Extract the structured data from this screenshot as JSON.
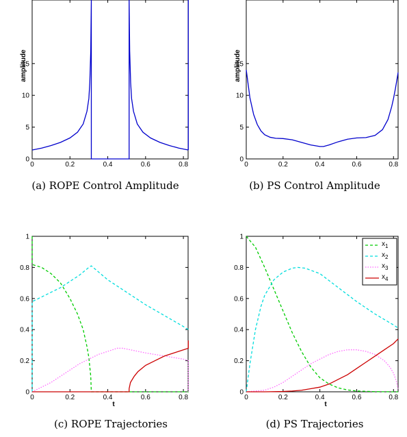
{
  "chart_data": [
    {
      "id": "a",
      "type": "line",
      "caption": "(a) ROPE Control Amplitude",
      "ylabel": "amplitude",
      "xlabel": "",
      "xlim": [
        0,
        0.825
      ],
      "ylim": [
        0,
        25
      ],
      "xticks": [
        "0",
        "0.2",
        "0.4",
        "0.6",
        "0.8"
      ],
      "yticks": [
        "0",
        "5",
        "10",
        "15"
      ],
      "series": [
        {
          "color": "#0000cc",
          "x": [
            0,
            0.05,
            0.1,
            0.15,
            0.2,
            0.24,
            0.27,
            0.29,
            0.3,
            0.305,
            0.31,
            0.313,
            0.313,
            0.513,
            0.513,
            0.516,
            0.521,
            0.526,
            0.536,
            0.556,
            0.586,
            0.626,
            0.676,
            0.726,
            0.776,
            0.826
          ],
          "y": [
            1.4,
            1.7,
            2.1,
            2.6,
            3.3,
            4.2,
            5.5,
            7.5,
            9.5,
            12.0,
            17.0,
            25.0,
            0,
            0,
            25.0,
            17.0,
            12.0,
            9.5,
            7.5,
            5.5,
            4.2,
            3.3,
            2.6,
            2.1,
            1.7,
            1.4
          ]
        },
        {
          "color": "#0000cc",
          "x": [
            0.826,
            0.826
          ],
          "y": [
            1.4,
            25.0
          ]
        }
      ]
    },
    {
      "id": "b",
      "type": "line",
      "caption": "(b) PS Control Amplitude",
      "ylabel": "amplitude",
      "xlabel": "",
      "xlim": [
        0,
        0.825
      ],
      "ylim": [
        0,
        25
      ],
      "xticks": [
        "0",
        "0.2",
        "0.4",
        "0.6",
        "0.8"
      ],
      "yticks": [
        "0",
        "5",
        "10",
        "15"
      ],
      "series": [
        {
          "color": "#0000cc",
          "x": [
            0,
            0.01,
            0.02,
            0.04,
            0.06,
            0.08,
            0.1,
            0.13,
            0.16,
            0.2,
            0.25,
            0.3,
            0.35,
            0.4,
            0.42,
            0.45,
            0.5,
            0.55,
            0.6,
            0.65,
            0.7,
            0.74,
            0.77,
            0.79,
            0.8,
            0.81,
            0.82,
            0.825
          ],
          "y": [
            14.0,
            11.8,
            9.6,
            7.0,
            5.4,
            4.4,
            3.8,
            3.4,
            3.25,
            3.2,
            3.0,
            2.6,
            2.2,
            1.95,
            1.95,
            2.2,
            2.7,
            3.1,
            3.3,
            3.35,
            3.7,
            4.6,
            6.2,
            8.2,
            9.5,
            11.0,
            12.7,
            13.6
          ]
        }
      ]
    },
    {
      "id": "c",
      "type": "line",
      "caption": "(c) ROPE Trajectories",
      "ylabel": "",
      "xlabel": "t",
      "xlim": [
        0,
        0.825
      ],
      "ylim": [
        0,
        1
      ],
      "xticks": [
        "0",
        "0.2",
        "0.4",
        "0.6",
        "0.8"
      ],
      "yticks": [
        "0",
        "0.2",
        "0.4",
        "0.6",
        "0.8",
        "1"
      ],
      "series": [
        {
          "color": "#00cc00",
          "dash": "4,3",
          "x": [
            0,
            0,
            0.01,
            0.05,
            0.1,
            0.15,
            0.2,
            0.24,
            0.27,
            0.29,
            0.3,
            0.31,
            0.313,
            0.83
          ],
          "y": [
            1.0,
            0.82,
            0.815,
            0.8,
            0.76,
            0.7,
            0.6,
            0.5,
            0.4,
            0.29,
            0.22,
            0.1,
            0,
            0
          ]
        },
        {
          "color": "#00dddd",
          "dash": "4,3",
          "x": [
            0,
            0,
            0.05,
            0.1,
            0.15,
            0.2,
            0.25,
            0.3,
            0.313,
            0.4,
            0.5,
            0.6,
            0.7,
            0.8,
            0.826
          ],
          "y": [
            0,
            0.58,
            0.61,
            0.64,
            0.67,
            0.71,
            0.75,
            0.8,
            0.81,
            0.72,
            0.64,
            0.56,
            0.49,
            0.42,
            0.4
          ]
        },
        {
          "color": "#ff66ff",
          "dash": "1.5,2",
          "x": [
            0,
            0.05,
            0.1,
            0.15,
            0.2,
            0.25,
            0.3,
            0.35,
            0.4,
            0.45,
            0.48,
            0.52,
            0.56,
            0.6,
            0.65,
            0.7,
            0.75,
            0.8,
            0.826,
            0.826
          ],
          "y": [
            0,
            0.03,
            0.06,
            0.1,
            0.14,
            0.18,
            0.21,
            0.24,
            0.26,
            0.28,
            0.28,
            0.27,
            0.26,
            0.25,
            0.24,
            0.23,
            0.22,
            0.21,
            0.2,
            0
          ]
        },
        {
          "color": "#cc0000",
          "x": [
            0,
            0.513,
            0.513,
            0.52,
            0.54,
            0.56,
            0.6,
            0.65,
            0.7,
            0.75,
            0.8,
            0.826,
            0.826
          ],
          "y": [
            0,
            0,
            0.02,
            0.06,
            0.1,
            0.13,
            0.17,
            0.2,
            0.23,
            0.25,
            0.27,
            0.28,
            0.33
          ]
        }
      ]
    },
    {
      "id": "d",
      "type": "line",
      "caption": "(d) PS Trajectories",
      "ylabel": "",
      "xlabel": "t",
      "xlim": [
        0,
        0.825
      ],
      "ylim": [
        0,
        1
      ],
      "xticks": [
        "0",
        "0.2",
        "0.4",
        "0.6",
        "0.8"
      ],
      "yticks": [
        "0",
        "0.2",
        "0.4",
        "0.6",
        "0.8",
        "1"
      ],
      "legend": {
        "position": "top-right",
        "entries": [
          "1",
          "2",
          "3",
          "4"
        ]
      },
      "series": [
        {
          "label": "1",
          "color": "#00cc00",
          "dash": "4,3",
          "x": [
            0,
            0.05,
            0.1,
            0.15,
            0.2,
            0.25,
            0.3,
            0.35,
            0.4,
            0.45,
            0.5,
            0.55,
            0.6,
            0.7,
            0.8,
            0.825
          ],
          "y": [
            1.0,
            0.93,
            0.8,
            0.66,
            0.52,
            0.38,
            0.26,
            0.16,
            0.09,
            0.05,
            0.025,
            0.012,
            0.005,
            0.001,
            0,
            0
          ]
        },
        {
          "label": "2",
          "color": "#00dddd",
          "dash": "4,3",
          "x": [
            0,
            0.02,
            0.05,
            0.08,
            0.1,
            0.15,
            0.2,
            0.25,
            0.28,
            0.32,
            0.4,
            0.5,
            0.6,
            0.7,
            0.8,
            0.825
          ],
          "y": [
            0,
            0.18,
            0.4,
            0.55,
            0.62,
            0.72,
            0.77,
            0.795,
            0.8,
            0.795,
            0.76,
            0.67,
            0.58,
            0.5,
            0.43,
            0.41
          ]
        },
        {
          "label": "3",
          "color": "#ff66ff",
          "dash": "1.5,2",
          "x": [
            0,
            0.1,
            0.15,
            0.2,
            0.25,
            0.3,
            0.35,
            0.4,
            0.45,
            0.5,
            0.55,
            0.6,
            0.65,
            0.7,
            0.75,
            0.78,
            0.8,
            0.815,
            0.825
          ],
          "y": [
            0,
            0.01,
            0.03,
            0.06,
            0.1,
            0.14,
            0.18,
            0.21,
            0.24,
            0.26,
            0.27,
            0.27,
            0.26,
            0.24,
            0.2,
            0.16,
            0.12,
            0.07,
            0.02
          ]
        },
        {
          "label": "4",
          "color": "#cc0000",
          "x": [
            0,
            0.1,
            0.2,
            0.25,
            0.3,
            0.35,
            0.4,
            0.45,
            0.5,
            0.55,
            0.6,
            0.65,
            0.7,
            0.75,
            0.8,
            0.825
          ],
          "y": [
            0,
            0,
            0.002,
            0.005,
            0.01,
            0.02,
            0.03,
            0.05,
            0.08,
            0.11,
            0.15,
            0.19,
            0.23,
            0.27,
            0.31,
            0.34
          ]
        }
      ]
    }
  ]
}
